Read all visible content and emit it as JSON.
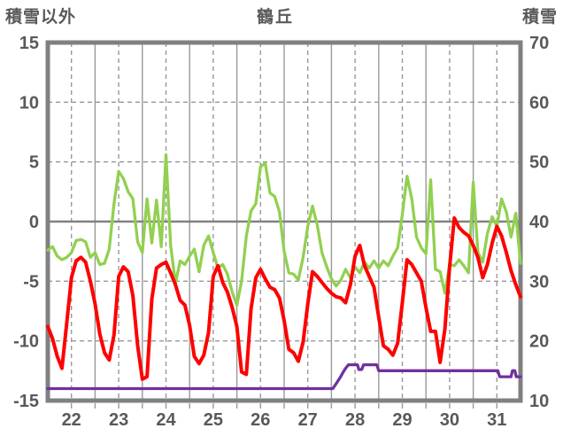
{
  "header": {
    "left_axis_title": "積雪以外",
    "chart_title": "鶴丘",
    "right_axis_title": "積雪"
  },
  "colors": {
    "red_series": "#FF0000",
    "green_series": "#92D050",
    "purple_series": "#7030A0",
    "grid": "#999999",
    "zero_line": "#808080",
    "frame": "#808080",
    "text": "#595959"
  },
  "chart_data": {
    "type": "line",
    "title": "鶴丘",
    "left_axis": {
      "label": "積雪以外",
      "ticks": [
        15,
        10,
        5,
        0,
        -5,
        -10,
        -15
      ],
      "range": [
        -15,
        15
      ]
    },
    "right_axis": {
      "label": "積雪",
      "ticks": [
        70,
        60,
        50,
        40,
        30,
        20,
        10
      ],
      "range": [
        10,
        70
      ]
    },
    "x_axis": {
      "labels": [
        "22",
        "23",
        "24",
        "25",
        "26",
        "27",
        "28",
        "29",
        "30",
        "31"
      ],
      "range": [
        22,
        32
      ],
      "solid_grid_interval": 1,
      "dashed_grid_interval": 0.5
    },
    "grid": "on",
    "legend": "none",
    "series": [
      {
        "name": "green-line",
        "color": "#92D050",
        "axis": "left",
        "start": 22,
        "step": 0.1,
        "values": [
          -2.4,
          -2.1,
          -2.9,
          -3.2,
          -3.0,
          -2.6,
          -1.6,
          -1.5,
          -1.7,
          -3.0,
          -2.6,
          -3.6,
          -3.5,
          -2.3,
          1.5,
          4.2,
          3.6,
          2.5,
          1.9,
          -1.7,
          -2.6,
          1.9,
          -1.8,
          1.8,
          -2.1,
          5.6,
          -2.0,
          -5.2,
          -3.3,
          -3.6,
          -2.9,
          -2.3,
          -4.2,
          -2.0,
          -1.2,
          -2.6,
          -3.9,
          -3.6,
          -4.4,
          -5.9,
          -7.0,
          -5.0,
          -1.2,
          0.9,
          1.5,
          4.6,
          4.9,
          2.4,
          2.1,
          0.8,
          -2.5,
          -4.3,
          -4.4,
          -4.9,
          -3.0,
          -0.4,
          1.3,
          -0.3,
          -2.6,
          -3.8,
          -4.8,
          -5.4,
          -4.9,
          -4.0,
          -4.7,
          -3.8,
          -4.3,
          -3.4,
          -3.9,
          -3.3,
          -3.9,
          -3.3,
          -3.7,
          -2.9,
          -2.2,
          0.6,
          3.8,
          1.9,
          -1.3,
          -2.2,
          -2.7,
          3.5,
          -4.0,
          -4.2,
          -6.0,
          -3.6,
          -3.7,
          -3.2,
          -3.7,
          -4.3,
          3.3,
          -2.6,
          -3.4,
          -1.0,
          0.4,
          -0.4,
          1.9,
          0.8,
          -1.3,
          0.7,
          -3.5
        ]
      },
      {
        "name": "red-line",
        "color": "#FF0000",
        "axis": "left",
        "start": 22,
        "step": 0.1,
        "values": [
          -8.8,
          -9.8,
          -11.3,
          -12.3,
          -8.5,
          -4.7,
          -3.3,
          -3.0,
          -3.4,
          -5.0,
          -6.9,
          -9.4,
          -11.0,
          -11.6,
          -9.5,
          -4.6,
          -3.8,
          -4.2,
          -6.2,
          -10.4,
          -13.2,
          -13.0,
          -6.5,
          -3.9,
          -3.6,
          -3.4,
          -4.3,
          -5.3,
          -6.6,
          -7.0,
          -8.7,
          -11.3,
          -11.9,
          -11.2,
          -9.3,
          -4.6,
          -3.7,
          -5.1,
          -5.9,
          -7.2,
          -8.8,
          -12.6,
          -12.8,
          -7.3,
          -4.7,
          -4.0,
          -4.8,
          -5.5,
          -5.7,
          -6.4,
          -8.3,
          -10.7,
          -11.0,
          -11.7,
          -10.1,
          -6.9,
          -4.2,
          -4.6,
          -5.1,
          -5.6,
          -6.0,
          -6.3,
          -6.4,
          -6.8,
          -5.3,
          -2.9,
          -2.0,
          -3.7,
          -4.6,
          -5.5,
          -8.0,
          -10.4,
          -10.7,
          -11.2,
          -10.2,
          -6.8,
          -3.2,
          -3.6,
          -4.3,
          -5.0,
          -7.2,
          -9.2,
          -9.2,
          -11.8,
          -9.0,
          -3.8,
          0.3,
          -0.5,
          -0.9,
          -1.2,
          -2.0,
          -3.0,
          -4.7,
          -3.6,
          -1.8,
          -0.4,
          -1.2,
          -2.6,
          -4.1,
          -5.3,
          -6.3
        ]
      },
      {
        "name": "purple-snow-depth-line",
        "color": "#7030A0",
        "axis": "right",
        "points": [
          [
            22.0,
            12
          ],
          [
            28.03,
            12
          ],
          [
            28.08,
            12.6
          ],
          [
            28.13,
            13.2
          ],
          [
            28.18,
            13.8
          ],
          [
            28.25,
            14.8
          ],
          [
            28.3,
            15.4
          ],
          [
            28.36,
            16
          ],
          [
            28.55,
            16
          ],
          [
            28.58,
            15.2
          ],
          [
            28.64,
            15.2
          ],
          [
            28.68,
            16
          ],
          [
            28.96,
            16
          ],
          [
            29.0,
            15
          ],
          [
            31.52,
            15
          ],
          [
            31.56,
            14
          ],
          [
            31.8,
            14
          ],
          [
            31.83,
            15
          ],
          [
            31.88,
            15
          ],
          [
            31.91,
            14
          ],
          [
            32.0,
            14
          ]
        ]
      }
    ]
  }
}
